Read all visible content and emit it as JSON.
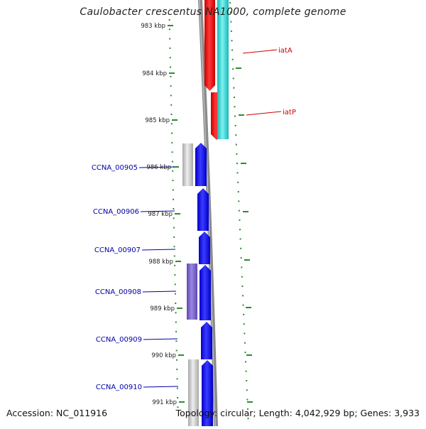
{
  "title": "Caulobacter crescentus NA1000, complete genome",
  "accession_text": "Accession: NC_011916",
  "summary_text": "Topology: circular; Length: 4,042,929 bp; Genes: 3,933",
  "colors": {
    "backbone": "#8a8a8a",
    "tick": "#2e8b2e",
    "forward_gene": "#0000ee",
    "red_gene": "#ee0000",
    "cyan_gene": "#22cccc",
    "grey_gene": "#bdbdbd",
    "purple_gene": "#7a63c9",
    "gene_label_blue": "#0000aa",
    "gene_label_red": "#cc0000"
  },
  "kbp_labels": [
    "983 kbp",
    "984 kbp",
    "985 kbp",
    "986 kbp",
    "987 kbp",
    "988 kbp",
    "989 kbp",
    "990 kbp",
    "991 kbp"
  ],
  "gene_labels_left": [
    "CCNA_00905",
    "CCNA_00906",
    "CCNA_00907",
    "CCNA_00908",
    "CCNA_00909",
    "CCNA_00910"
  ],
  "gene_labels_right": [
    "iatA",
    "iatP"
  ]
}
